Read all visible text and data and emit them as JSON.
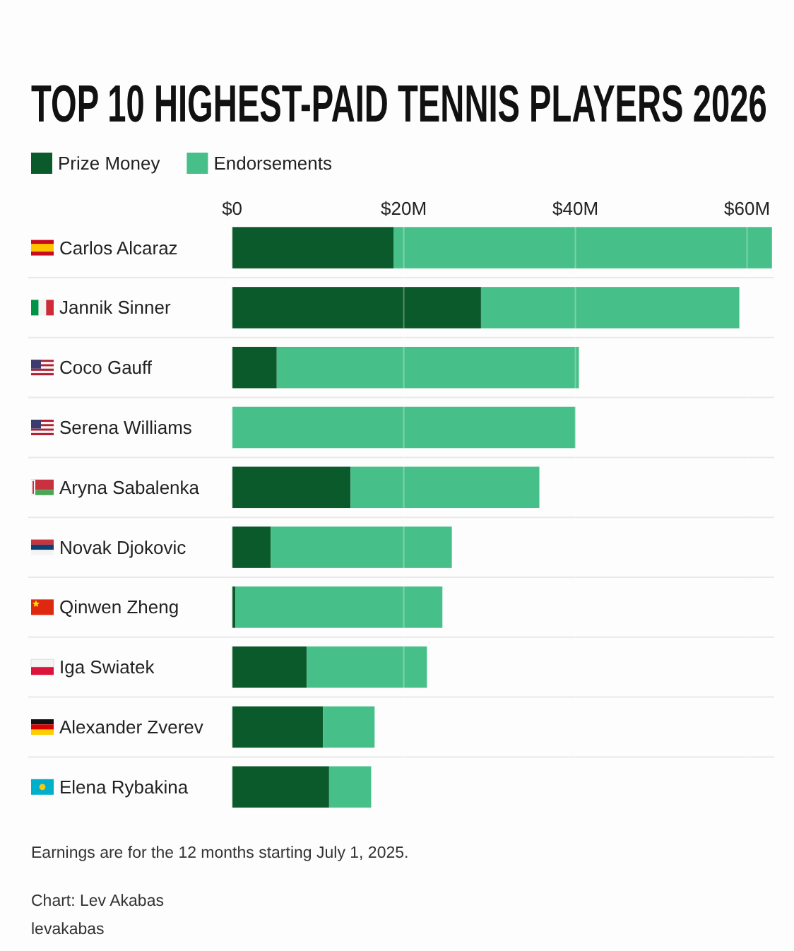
{
  "chart_data": {
    "type": "bar",
    "orientation": "horizontal",
    "stacked": true,
    "title": "TOP 10 HIGHEST-PAID TENNIS PLAYERS 2026",
    "categories": [
      "Carlos Alcaraz",
      "Jannik Sinner",
      "Coco Gauff",
      "Serena Williams",
      "Aryna Sabalenka",
      "Novak Djokovic",
      "Qinwen Zheng",
      "Iga Swiatek",
      "Alexander Zverev",
      "Elena Rybakina"
    ],
    "series": [
      {
        "name": "Prize Money",
        "color": "#0b5a2c",
        "values": [
          18.8,
          29.0,
          5.2,
          0,
          13.8,
          4.5,
          0.4,
          8.7,
          10.6,
          11.3
        ]
      },
      {
        "name": "Endorsements",
        "color": "#47bf88",
        "values": [
          44.1,
          30.1,
          35.2,
          40.0,
          22.0,
          21.1,
          24.1,
          14.0,
          6.0,
          4.9
        ]
      }
    ],
    "xlim": [
      0,
      63
    ],
    "xticks": [
      {
        "value": 0,
        "label": "$0"
      },
      {
        "value": 20,
        "label": "$20M"
      },
      {
        "value": 40,
        "label": "$40M"
      },
      {
        "value": 60,
        "label": "$60M"
      }
    ],
    "grid": "x",
    "legend": "top left",
    "annotations": [
      "Earnings are for the 12 months starting July 1, 2025.",
      "Chart: Lev Akabas",
      "levakabas"
    ]
  }
}
